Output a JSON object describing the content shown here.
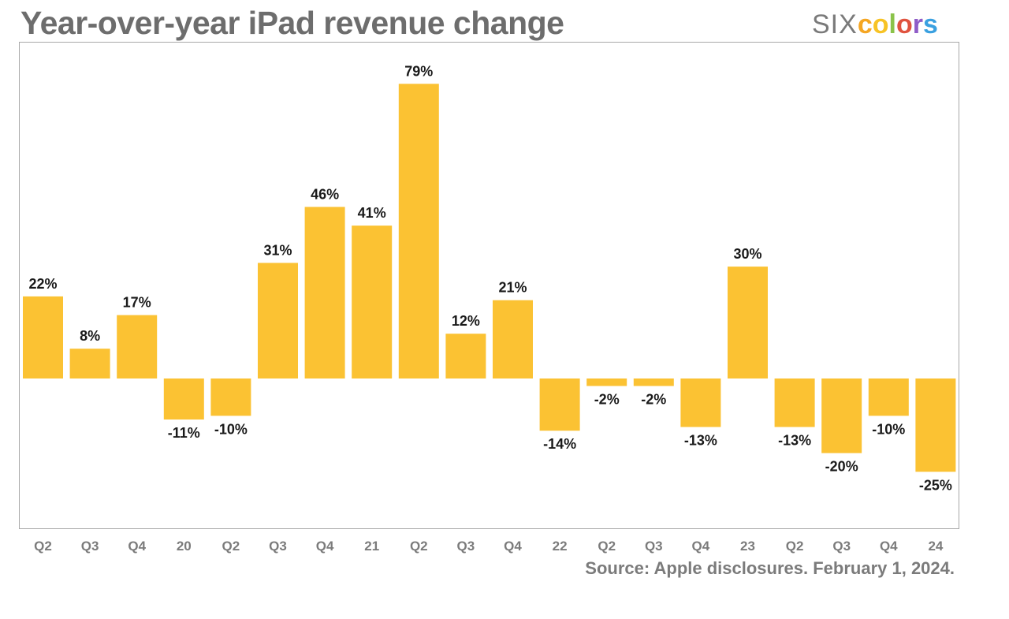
{
  "header": {
    "title": "Year-over-year iPad revenue change",
    "logo_parts": [
      {
        "text": "c",
        "color": "#f5a623"
      },
      {
        "text": "o",
        "color": "#f7c325"
      },
      {
        "text": "l",
        "color": "#8bc34a"
      },
      {
        "text": "o",
        "color": "#e0533f"
      },
      {
        "text": "r",
        "color": "#8f5cc7"
      },
      {
        "text": "s",
        "color": "#3aa0e0"
      }
    ],
    "logo_prefix": "SIX"
  },
  "footer": {
    "source": "Source: Apple disclosures. February 1, 2024."
  },
  "colors": {
    "bar": "#fbc233",
    "label": "#1a1a1a",
    "tick": "#7b7b7b"
  },
  "chart_data": {
    "type": "bar",
    "title": "Year-over-year iPad revenue change",
    "xlabel": "",
    "ylabel": "",
    "categories": [
      "Q2",
      "Q3",
      "Q4",
      "20",
      "Q2",
      "Q3",
      "Q4",
      "21",
      "Q2",
      "Q3",
      "Q4",
      "22",
      "Q2",
      "Q3",
      "Q4",
      "23",
      "Q2",
      "Q3",
      "Q4",
      "24"
    ],
    "values": [
      22,
      8,
      17,
      -11,
      -10,
      31,
      46,
      41,
      79,
      12,
      21,
      -14,
      -2,
      -2,
      -13,
      30,
      -13,
      -20,
      -10,
      -25
    ],
    "data_labels": [
      "22%",
      "8%",
      "17%",
      "-11%",
      "-10%",
      "31%",
      "46%",
      "41%",
      "79%",
      "12%",
      "21%",
      "-14%",
      "-2%",
      "-2%",
      "-13%",
      "30%",
      "-13%",
      "-20%",
      "-10%",
      "-25%"
    ],
    "ylim": [
      -40,
      90
    ],
    "grid": false,
    "legend": "none"
  }
}
